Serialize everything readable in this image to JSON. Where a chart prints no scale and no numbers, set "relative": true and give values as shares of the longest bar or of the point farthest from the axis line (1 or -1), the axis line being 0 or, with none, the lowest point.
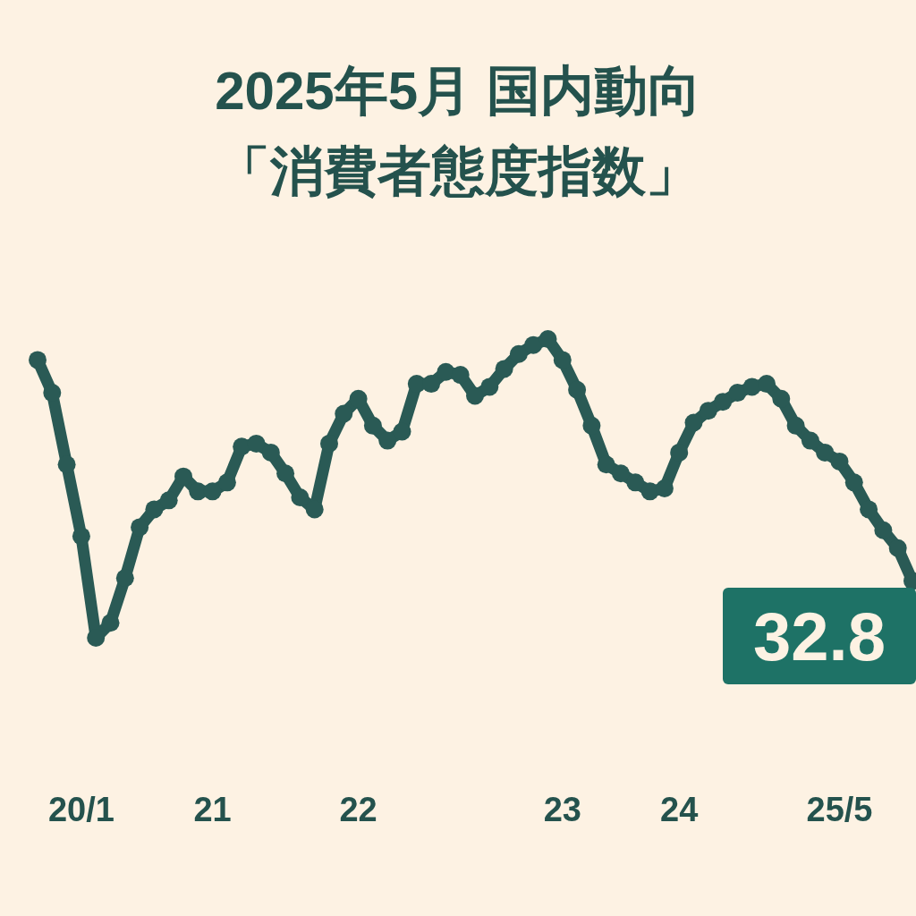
{
  "chart_data": {
    "type": "line",
    "title": "2025年5月 国内動向",
    "subtitle": "「消費者態度指数」",
    "relative": true,
    "marker": "circle",
    "categories": [
      null,
      null,
      null,
      "20/1",
      null,
      null,
      null,
      null,
      null,
      null,
      null,
      null,
      "21",
      null,
      null,
      null,
      null,
      null,
      null,
      null,
      null,
      null,
      "22",
      null,
      null,
      null,
      null,
      null,
      null,
      null,
      null,
      null,
      null,
      null,
      null,
      null,
      "23",
      null,
      null,
      null,
      null,
      null,
      null,
      null,
      "24",
      null,
      null,
      null,
      null,
      null,
      null,
      null,
      null,
      null,
      null,
      "25/5",
      null,
      null,
      null,
      null,
      null
    ],
    "series": [
      {
        "color": "#2a5a55",
        "values": [
          0.93,
          0.82,
          0.58,
          0.34,
          0,
          0.05,
          0.2,
          0.37,
          0.43,
          0.46,
          0.54,
          0.49,
          0.49,
          0.52,
          0.64,
          0.65,
          0.62,
          0.55,
          0.47,
          0.43,
          0.65,
          0.75,
          0.8,
          0.71,
          0.66,
          0.69,
          0.85,
          0.85,
          0.89,
          0.88,
          0.81,
          0.84,
          0.9,
          0.95,
          0.98,
          1,
          0.93,
          0.83,
          0.71,
          0.58,
          0.55,
          0.52,
          0.49,
          0.5,
          0.62,
          0.72,
          0.76,
          0.79,
          0.82,
          0.84,
          0.85,
          0.8,
          0.71,
          0.66,
          0.62,
          0.59,
          0.52,
          0.43,
          0.36,
          0.3,
          0.19
        ]
      }
    ],
    "annotations": [
      "32.8"
    ]
  }
}
